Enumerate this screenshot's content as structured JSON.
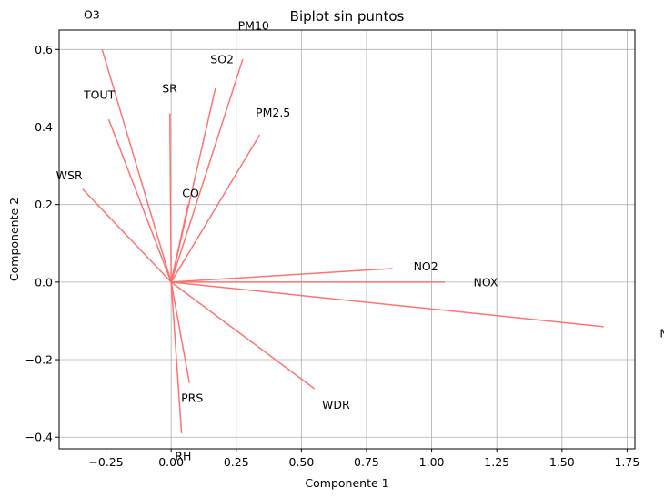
{
  "chart_data": {
    "type": "biplot",
    "title": "Biplot sin puntos",
    "xlabel": "Componente 1",
    "ylabel": "Componente 2",
    "xlim": [
      -0.43,
      1.78
    ],
    "ylim": [
      -0.43,
      0.65
    ],
    "xticks": [
      -0.25,
      0.0,
      0.25,
      0.5,
      0.75,
      1.0,
      1.25,
      1.5,
      1.75
    ],
    "xtick_labels": [
      "−0.25",
      "0.00",
      "0.25",
      "0.50",
      "0.75",
      "1.00",
      "1.25",
      "1.50",
      "1.75"
    ],
    "yticks": [
      -0.4,
      -0.2,
      0.0,
      0.2,
      0.4,
      0.6
    ],
    "ytick_labels": [
      "−0.4",
      "−0.2",
      "0.0",
      "0.2",
      "0.4",
      "0.6"
    ],
    "grid": true,
    "vector_color": "#ff6b6b",
    "vectors": [
      {
        "name": "O3",
        "x": -0.265,
        "y": 0.6
      },
      {
        "name": "PM10",
        "x": 0.275,
        "y": 0.575
      },
      {
        "name": "SO2",
        "x": 0.17,
        "y": 0.5
      },
      {
        "name": "SR",
        "x": -0.005,
        "y": 0.435
      },
      {
        "name": "TOUT",
        "x": -0.24,
        "y": 0.42
      },
      {
        "name": "PM2.5",
        "x": 0.34,
        "y": 0.38
      },
      {
        "name": "WSR",
        "x": -0.34,
        "y": 0.24
      },
      {
        "name": "CO",
        "x": 0.065,
        "y": 0.2
      },
      {
        "name": "NO2",
        "x": 0.85,
        "y": 0.035
      },
      {
        "name": "NOX",
        "x": 1.05,
        "y": 0.0
      },
      {
        "name": "NO",
        "x": 1.66,
        "y": -0.115
      },
      {
        "name": "WDR",
        "x": 0.55,
        "y": -0.275
      },
      {
        "name": "PRS",
        "x": 0.07,
        "y": -0.26
      },
      {
        "name": "RH",
        "x": 0.04,
        "y": -0.39
      }
    ]
  }
}
